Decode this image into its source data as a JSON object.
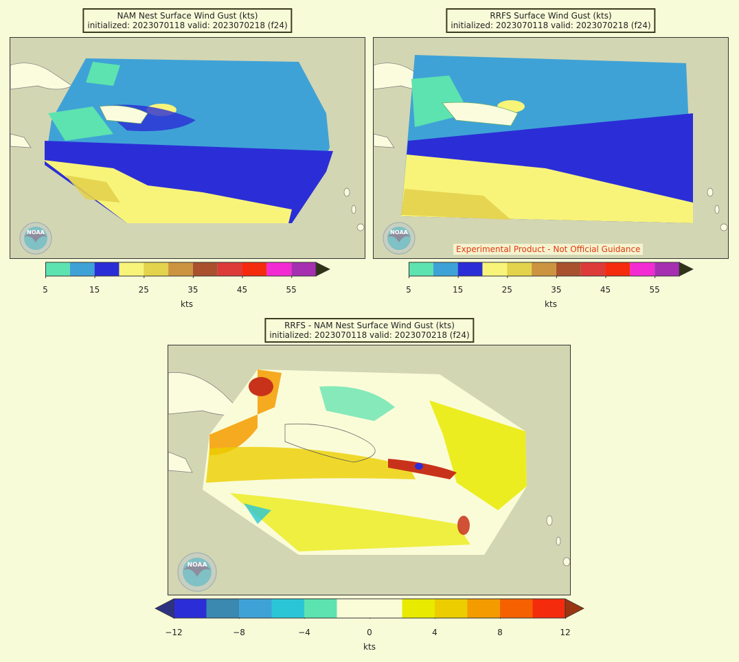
{
  "panels": [
    {
      "id": "nam",
      "title_line1": "NAM Nest Surface Wind Gust (kts)",
      "title_line2": "initialized: 2023070118 valid: 2023070218 (f24)"
    },
    {
      "id": "rrfs",
      "title_line1": "RRFS Surface Wind Gust (kts)",
      "title_line2": "initialized: 2023070118 valid: 2023070218 (f24)"
    },
    {
      "id": "diff",
      "title_line1": "RRFS - NAM Nest Surface Wind Gust (kts)",
      "title_line2": "initialized: 2023070118 valid: 2023070218 (f24)"
    }
  ],
  "disclaimer": "Experimental Product - Not Official Guidance",
  "logo_text": "NOAA",
  "gust_colorbar": {
    "unit_label": "kts",
    "ticks": [
      "5",
      "15",
      "25",
      "35",
      "45",
      "55"
    ],
    "colors": [
      "#5de3b0",
      "#3fa2d6",
      "#2b2ed6",
      "#f8f47a",
      "#e3d24c",
      "#cc9440",
      "#a9502d",
      "#dd3a3a",
      "#f52b0d",
      "#f22cd2",
      "#a52fb0"
    ],
    "extend_color": "#2f3315"
  },
  "diff_colorbar": {
    "unit_label": "kts",
    "ticks": [
      "−12",
      "−8",
      "−4",
      "0",
      "4",
      "8",
      "12"
    ],
    "colors": [
      "#2b2ed6",
      "#3b88b0",
      "#3fa2d6",
      "#2ac6d6",
      "#5de3b0",
      "#fafcd8",
      "#fafcd8",
      "#e8ea00",
      "#ecce00",
      "#f49b00",
      "#f56000",
      "#f52b0d"
    ],
    "low_extend_color": "#2e3380",
    "high_extend_color": "#9a3512"
  },
  "colors": {
    "background": "#f8fbd8",
    "land_outside": "#d3d6b3",
    "coast_land": "#fbfcde"
  }
}
